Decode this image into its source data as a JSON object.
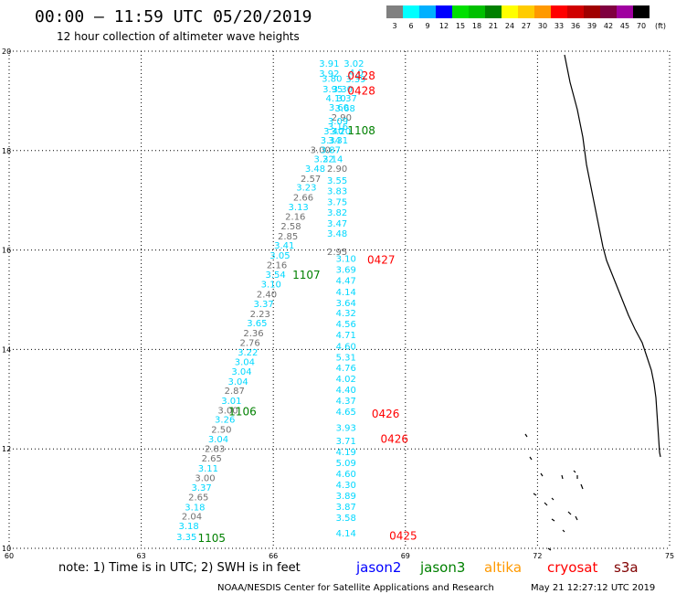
{
  "header": {
    "title": "00:00 – 11:59 UTC 05/20/2019",
    "subtitle": "12 hour collection of altimeter wave heights"
  },
  "color_scale": {
    "unit": "(ft)",
    "bins": [
      {
        "label": "3",
        "color": "#808080"
      },
      {
        "label": "6",
        "color": "#00ffff"
      },
      {
        "label": "9",
        "color": "#00b0ff"
      },
      {
        "label": "12",
        "color": "#0000ff"
      },
      {
        "label": "15",
        "color": "#00e000"
      },
      {
        "label": "18",
        "color": "#00c000"
      },
      {
        "label": "21",
        "color": "#008000"
      },
      {
        "label": "24",
        "color": "#ffff00"
      },
      {
        "label": "27",
        "color": "#ffcc00"
      },
      {
        "label": "30",
        "color": "#ff9900"
      },
      {
        "label": "33",
        "color": "#ff0000"
      },
      {
        "label": "36",
        "color": "#d00000"
      },
      {
        "label": "39",
        "color": "#a00000"
      },
      {
        "label": "42",
        "color": "#800040"
      },
      {
        "label": "45",
        "color": "#a000a0"
      },
      {
        "label": "70",
        "color": "#000000"
      }
    ]
  },
  "axes": {
    "lon_labels": [
      "60",
      "63",
      "66",
      "69",
      "72",
      "75"
    ],
    "lat_labels": [
      "10",
      "12",
      "14",
      "16",
      "18",
      "20"
    ]
  },
  "chart_data": {
    "type": "scatter",
    "xlim": [
      60,
      75
    ],
    "ylim": [
      10,
      20
    ],
    "grid": true,
    "colors": {
      "gray": "#707070",
      "cyan": "#00d8ff",
      "red": "#ff0000",
      "green": "#008000"
    },
    "wave_heights": [
      {
        "v": "3.91",
        "lon": 67.27,
        "lat": 19.74,
        "c": "cyan"
      },
      {
        "v": "3.02",
        "lon": 67.83,
        "lat": 19.74,
        "c": "cyan"
      },
      {
        "v": "3.92",
        "lon": 67.27,
        "lat": 19.54,
        "c": "cyan"
      },
      {
        "v": "4.0",
        "lon": 67.88,
        "lat": 19.56,
        "c": "cyan"
      },
      {
        "v": "3.80",
        "lon": 67.33,
        "lat": 19.44,
        "c": "cyan"
      },
      {
        "v": "3.39",
        "lon": 67.87,
        "lat": 19.43,
        "c": "cyan"
      },
      {
        "v": "3.95",
        "lon": 67.35,
        "lat": 19.23,
        "c": "cyan"
      },
      {
        "v": "3.30",
        "lon": 67.57,
        "lat": 19.23,
        "c": "cyan"
      },
      {
        "v": "4.10",
        "lon": 67.42,
        "lat": 19.04,
        "c": "cyan"
      },
      {
        "v": "3.37",
        "lon": 67.67,
        "lat": 19.04,
        "c": "cyan"
      },
      {
        "v": "3.60",
        "lon": 67.49,
        "lat": 18.86,
        "c": "cyan"
      },
      {
        "v": "3.68",
        "lon": 67.63,
        "lat": 18.84,
        "c": "cyan"
      },
      {
        "v": "2.90",
        "lon": 67.55,
        "lat": 18.66,
        "c": "gray"
      },
      {
        "v": "3.09",
        "lon": 67.47,
        "lat": 18.58,
        "c": "cyan"
      },
      {
        "v": "3.16",
        "lon": 67.47,
        "lat": 18.47,
        "c": "cyan"
      },
      {
        "v": "3.40",
        "lon": 67.37,
        "lat": 18.38,
        "c": "cyan"
      },
      {
        "v": "3.20",
        "lon": 67.53,
        "lat": 18.38,
        "c": "cyan"
      },
      {
        "v": "3.34",
        "lon": 67.3,
        "lat": 18.2,
        "c": "cyan"
      },
      {
        "v": "3.31",
        "lon": 67.47,
        "lat": 18.2,
        "c": "cyan"
      },
      {
        "v": "3.00",
        "lon": 67.07,
        "lat": 18.01,
        "c": "gray"
      },
      {
        "v": "3.87",
        "lon": 67.3,
        "lat": 18.01,
        "c": "cyan"
      },
      {
        "v": "3.22",
        "lon": 67.15,
        "lat": 17.82,
        "c": "cyan"
      },
      {
        "v": "3.14",
        "lon": 67.35,
        "lat": 17.82,
        "c": "cyan"
      },
      {
        "v": "3.48",
        "lon": 66.95,
        "lat": 17.63,
        "c": "cyan"
      },
      {
        "v": "2.90",
        "lon": 67.45,
        "lat": 17.63,
        "c": "gray"
      },
      {
        "v": "2.57",
        "lon": 66.85,
        "lat": 17.43,
        "c": "gray"
      },
      {
        "v": "3.55",
        "lon": 67.45,
        "lat": 17.39,
        "c": "cyan"
      },
      {
        "v": "3.23",
        "lon": 66.75,
        "lat": 17.25,
        "c": "cyan"
      },
      {
        "v": "3.83",
        "lon": 67.45,
        "lat": 17.18,
        "c": "cyan"
      },
      {
        "v": "2.66",
        "lon": 66.68,
        "lat": 17.05,
        "c": "gray"
      },
      {
        "v": "3.75",
        "lon": 67.45,
        "lat": 16.96,
        "c": "cyan"
      },
      {
        "v": "3.13",
        "lon": 66.57,
        "lat": 16.86,
        "c": "cyan"
      },
      {
        "v": "2.16",
        "lon": 66.5,
        "lat": 16.66,
        "c": "gray"
      },
      {
        "v": "3.82",
        "lon": 67.45,
        "lat": 16.75,
        "c": "cyan"
      },
      {
        "v": "2.58",
        "lon": 66.4,
        "lat": 16.47,
        "c": "gray"
      },
      {
        "v": "3.47",
        "lon": 67.45,
        "lat": 16.53,
        "c": "cyan"
      },
      {
        "v": "2.85",
        "lon": 66.33,
        "lat": 16.27,
        "c": "gray"
      },
      {
        "v": "3.48",
        "lon": 67.45,
        "lat": 16.32,
        "c": "cyan"
      },
      {
        "v": "3.41",
        "lon": 66.25,
        "lat": 16.08,
        "c": "cyan"
      },
      {
        "v": "2.95",
        "lon": 67.45,
        "lat": 15.96,
        "c": "gray"
      },
      {
        "v": "3.05",
        "lon": 66.15,
        "lat": 15.88,
        "c": "cyan"
      },
      {
        "v": "3.10",
        "lon": 67.65,
        "lat": 15.82,
        "c": "cyan"
      },
      {
        "v": "2.16",
        "lon": 66.08,
        "lat": 15.69,
        "c": "gray"
      },
      {
        "v": "3.69",
        "lon": 67.65,
        "lat": 15.6,
        "c": "cyan"
      },
      {
        "v": "3.54",
        "lon": 66.05,
        "lat": 15.5,
        "c": "cyan"
      },
      {
        "v": "4.47",
        "lon": 67.65,
        "lat": 15.38,
        "c": "cyan"
      },
      {
        "v": "3.10",
        "lon": 65.95,
        "lat": 15.3,
        "c": "cyan"
      },
      {
        "v": "2.40",
        "lon": 65.85,
        "lat": 15.1,
        "c": "gray"
      },
      {
        "v": "4.14",
        "lon": 67.65,
        "lat": 15.15,
        "c": "cyan"
      },
      {
        "v": "3.37",
        "lon": 65.78,
        "lat": 14.91,
        "c": "cyan"
      },
      {
        "v": "3.64",
        "lon": 67.65,
        "lat": 14.93,
        "c": "cyan"
      },
      {
        "v": "2.23",
        "lon": 65.7,
        "lat": 14.71,
        "c": "gray"
      },
      {
        "v": "4.32",
        "lon": 67.65,
        "lat": 14.72,
        "c": "cyan"
      },
      {
        "v": "3.65",
        "lon": 65.63,
        "lat": 14.52,
        "c": "cyan"
      },
      {
        "v": "4.56",
        "lon": 67.65,
        "lat": 14.5,
        "c": "cyan"
      },
      {
        "v": "2.36",
        "lon": 65.55,
        "lat": 14.32,
        "c": "gray"
      },
      {
        "v": "4.71",
        "lon": 67.65,
        "lat": 14.28,
        "c": "cyan"
      },
      {
        "v": "2.76",
        "lon": 65.47,
        "lat": 14.13,
        "c": "gray"
      },
      {
        "v": "3.22",
        "lon": 65.42,
        "lat": 13.93,
        "c": "cyan"
      },
      {
        "v": "4.60",
        "lon": 67.65,
        "lat": 14.05,
        "c": "cyan"
      },
      {
        "v": "3.04",
        "lon": 65.35,
        "lat": 13.74,
        "c": "cyan"
      },
      {
        "v": "5.31",
        "lon": 67.65,
        "lat": 13.83,
        "c": "cyan"
      },
      {
        "v": "3.04",
        "lon": 65.28,
        "lat": 13.55,
        "c": "cyan"
      },
      {
        "v": "4.76",
        "lon": 67.65,
        "lat": 13.62,
        "c": "cyan"
      },
      {
        "v": "3.04",
        "lon": 65.2,
        "lat": 13.35,
        "c": "cyan"
      },
      {
        "v": "4.02",
        "lon": 67.65,
        "lat": 13.4,
        "c": "cyan"
      },
      {
        "v": "2.87",
        "lon": 65.12,
        "lat": 13.16,
        "c": "gray"
      },
      {
        "v": "4.40",
        "lon": 67.65,
        "lat": 13.18,
        "c": "cyan"
      },
      {
        "v": "3.01",
        "lon": 65.05,
        "lat": 12.96,
        "c": "cyan"
      },
      {
        "v": "4.37",
        "lon": 67.65,
        "lat": 12.96,
        "c": "cyan"
      },
      {
        "v": "3.00",
        "lon": 64.97,
        "lat": 12.77,
        "c": "gray"
      },
      {
        "v": "4.65",
        "lon": 67.65,
        "lat": 12.74,
        "c": "cyan"
      },
      {
        "v": "3.26",
        "lon": 64.9,
        "lat": 12.58,
        "c": "cyan"
      },
      {
        "v": "2.50",
        "lon": 64.82,
        "lat": 12.38,
        "c": "gray"
      },
      {
        "v": "3.93",
        "lon": 67.65,
        "lat": 12.42,
        "c": "cyan"
      },
      {
        "v": "3.04",
        "lon": 64.75,
        "lat": 12.19,
        "c": "cyan"
      },
      {
        "v": "3.71",
        "lon": 67.65,
        "lat": 12.15,
        "c": "cyan"
      },
      {
        "v": "2.83",
        "lon": 64.67,
        "lat": 11.99,
        "c": "gray"
      },
      {
        "v": "4.19",
        "lon": 67.65,
        "lat": 11.93,
        "c": "cyan"
      },
      {
        "v": "2.65",
        "lon": 64.6,
        "lat": 11.8,
        "c": "gray"
      },
      {
        "v": "5.09",
        "lon": 67.65,
        "lat": 11.71,
        "c": "cyan"
      },
      {
        "v": "3.11",
        "lon": 64.52,
        "lat": 11.6,
        "c": "cyan"
      },
      {
        "v": "4.60",
        "lon": 67.65,
        "lat": 11.49,
        "c": "cyan"
      },
      {
        "v": "3.00",
        "lon": 64.45,
        "lat": 11.41,
        "c": "gray"
      },
      {
        "v": "4.30",
        "lon": 67.65,
        "lat": 11.27,
        "c": "cyan"
      },
      {
        "v": "3.37",
        "lon": 64.37,
        "lat": 11.21,
        "c": "cyan"
      },
      {
        "v": "3.89",
        "lon": 67.65,
        "lat": 11.05,
        "c": "cyan"
      },
      {
        "v": "2.65",
        "lon": 64.3,
        "lat": 11.02,
        "c": "gray"
      },
      {
        "v": "3.87",
        "lon": 67.65,
        "lat": 10.83,
        "c": "cyan"
      },
      {
        "v": "3.18",
        "lon": 64.22,
        "lat": 10.82,
        "c": "cyan"
      },
      {
        "v": "2.04",
        "lon": 64.15,
        "lat": 10.63,
        "c": "gray"
      },
      {
        "v": "3.58",
        "lon": 67.65,
        "lat": 10.61,
        "c": "cyan"
      },
      {
        "v": "3.18",
        "lon": 64.08,
        "lat": 10.44,
        "c": "cyan"
      },
      {
        "v": "3.35",
        "lon": 64.03,
        "lat": 10.22,
        "c": "cyan"
      },
      {
        "v": "4.14",
        "lon": 67.65,
        "lat": 10.29,
        "c": "cyan"
      }
    ],
    "pass_times": [
      {
        "label": "0428",
        "lon": 68.0,
        "lat": 19.5,
        "c": "red"
      },
      {
        "label": "0428",
        "lon": 68.0,
        "lat": 19.2,
        "c": "red"
      },
      {
        "label": "1108",
        "lon": 68.0,
        "lat": 18.4,
        "c": "green"
      },
      {
        "label": "0427",
        "lon": 68.45,
        "lat": 15.8,
        "c": "red"
      },
      {
        "label": "1107",
        "lon": 66.75,
        "lat": 15.5,
        "c": "green"
      },
      {
        "label": "1106",
        "lon": 65.3,
        "lat": 12.75,
        "c": "green"
      },
      {
        "label": "0426",
        "lon": 68.55,
        "lat": 12.7,
        "c": "red"
      },
      {
        "label": "0426",
        "lon": 68.75,
        "lat": 12.2,
        "c": "red"
      },
      {
        "label": "1105",
        "lon": 64.6,
        "lat": 10.2,
        "c": "green"
      },
      {
        "label": "0425",
        "lon": 68.95,
        "lat": 10.25,
        "c": "red"
      }
    ]
  },
  "footer": {
    "note": "note: 1) Time is in UTC; 2) SWH is in feet",
    "legend": [
      {
        "name": "jason2",
        "color": "#0000ff"
      },
      {
        "name": "jason3",
        "color": "#008000"
      },
      {
        "name": "altika",
        "color": "#ff9900"
      },
      {
        "name": "cryosat",
        "color": "#ff0000"
      },
      {
        "name": "s3a",
        "color": "#800000"
      }
    ],
    "credit": "NOAA/NESDIS Center for Satellite Applications and Research",
    "timestamp": "May 21 12:27:12 UTC 2019"
  }
}
